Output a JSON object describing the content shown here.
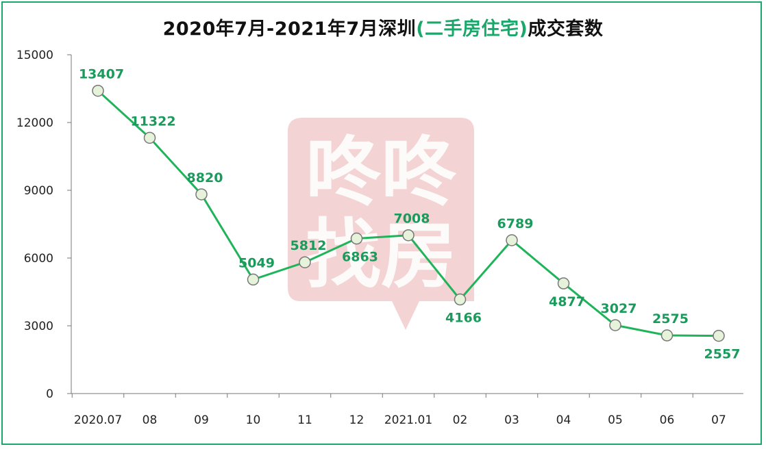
{
  "chart_data": {
    "type": "line",
    "title_prefix": "2020年7月-2021年7月深圳",
    "title_paren": "(二手房住宅)",
    "title_suffix": "成交套数",
    "categories": [
      "2020.07",
      "08",
      "09",
      "10",
      "11",
      "12",
      "2021.01",
      "02",
      "03",
      "04",
      "05",
      "06",
      "07"
    ],
    "series": [
      {
        "values": [
          13407,
          11322,
          8820,
          5049,
          5812,
          6863,
          7008,
          4166,
          6789,
          4877,
          3027,
          2575,
          2557
        ]
      }
    ],
    "data_labels": [
      "13407",
      "11322",
      "8820",
      "5049",
      "5812",
      "6863",
      "7008",
      "4166",
      "6789",
      "4877",
      "3027",
      "2575",
      "2557"
    ],
    "label_positions": [
      "above",
      "above",
      "above",
      "above",
      "above",
      "below",
      "above",
      "below",
      "above",
      "below",
      "above",
      "above",
      "below"
    ],
    "yticks": [
      0,
      3000,
      6000,
      9000,
      12000,
      15000
    ],
    "ytick_labels": [
      "0",
      "3000",
      "6000",
      "9000",
      "12000",
      "15000"
    ],
    "ylim": [
      0,
      15000
    ],
    "xlabel": "",
    "ylabel": "",
    "grid": false,
    "line_color": "#1fb45a",
    "marker_fill": "#e6f3da",
    "marker_stroke": "#777777",
    "label_color": "#1a9b5c",
    "watermark_text": [
      "咚咚",
      "找房"
    ],
    "watermark_color": "#f3d3d3"
  }
}
